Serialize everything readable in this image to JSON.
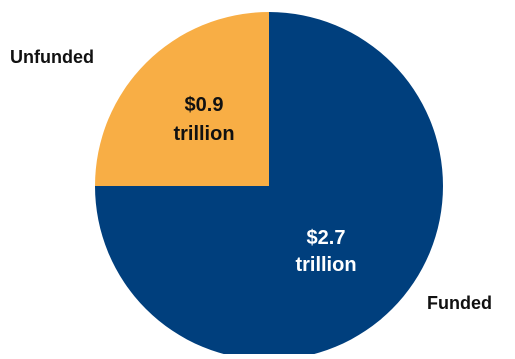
{
  "chart_data": {
    "type": "pie",
    "title": "",
    "slices": [
      {
        "name": "Funded",
        "value": 2.7,
        "value_label": "$2.7",
        "unit_label": "trillion",
        "color": "#003F7D",
        "text_color": "#FFFFFF"
      },
      {
        "name": "Unfunded",
        "value": 0.9,
        "value_label": "$0.9",
        "unit_label": "trillion",
        "color": "#F8AE45",
        "text_color": "#111111"
      }
    ],
    "legend": "labels-outside"
  }
}
